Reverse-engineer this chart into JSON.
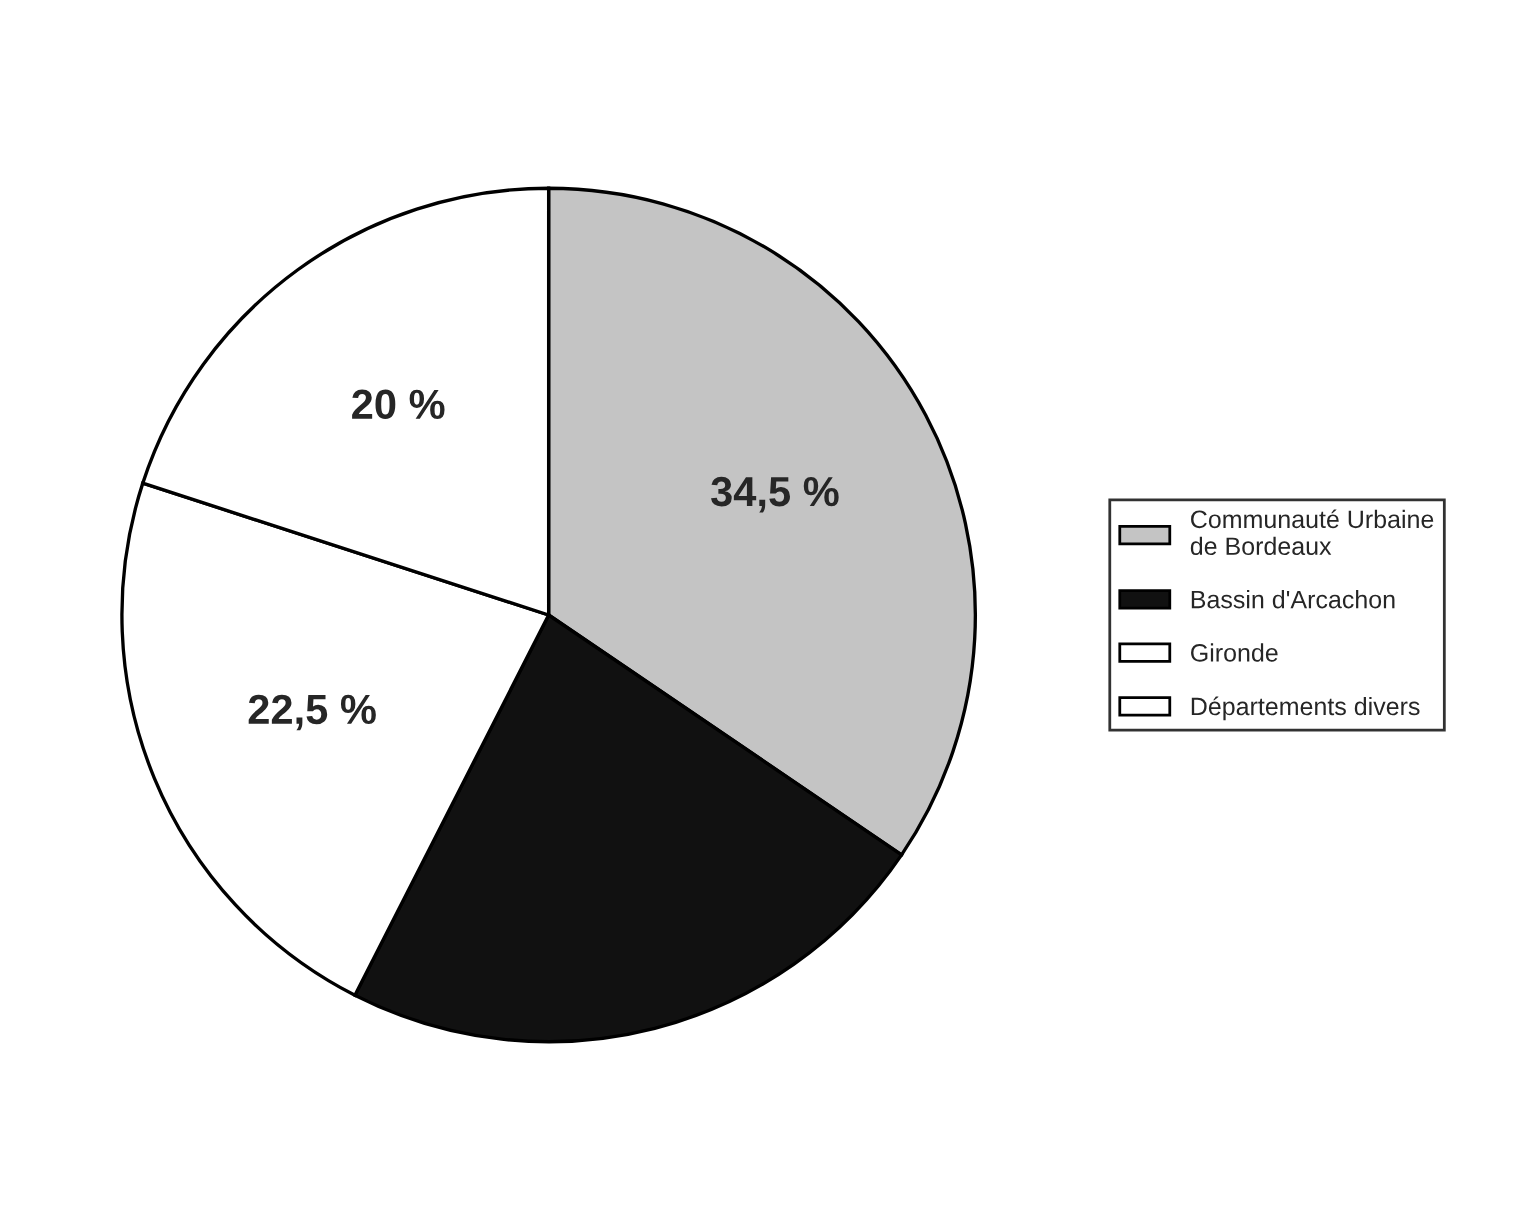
{
  "chart_data": {
    "type": "pie",
    "categories": [
      "Communauté Urbaine de Bordeaux",
      "Bassin d'Arcachon",
      "Gironde",
      "Départements divers"
    ],
    "values": [
      34.5,
      23,
      22.5,
      20
    ],
    "value_labels": [
      "34,5 %",
      null,
      "22,5 %",
      "20 %"
    ],
    "colors": [
      "#c4c4c4",
      "#111111",
      "#ffffff",
      "#ffffff"
    ],
    "legend": "right"
  }
}
